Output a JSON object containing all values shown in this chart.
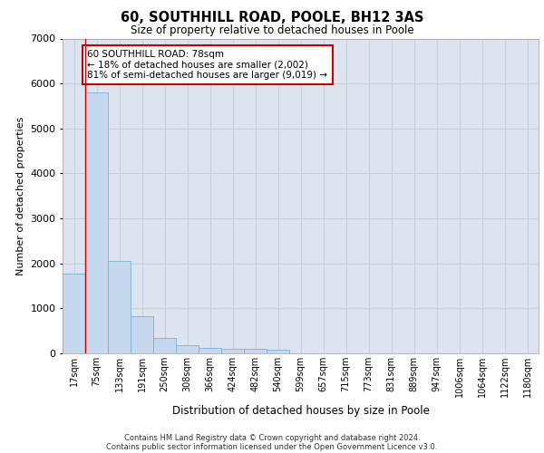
{
  "title1": "60, SOUTHHILL ROAD, POOLE, BH12 3AS",
  "title2": "Size of property relative to detached houses in Poole",
  "xlabel": "Distribution of detached houses by size in Poole",
  "ylabel": "Number of detached properties",
  "footnote1": "Contains HM Land Registry data © Crown copyright and database right 2024.",
  "footnote2": "Contains public sector information licensed under the Open Government Licence v3.0.",
  "bar_labels": [
    "17sqm",
    "75sqm",
    "133sqm",
    "191sqm",
    "250sqm",
    "308sqm",
    "366sqm",
    "424sqm",
    "482sqm",
    "540sqm",
    "599sqm",
    "657sqm",
    "715sqm",
    "773sqm",
    "831sqm",
    "889sqm",
    "947sqm",
    "1006sqm",
    "1064sqm",
    "1122sqm",
    "1180sqm"
  ],
  "bar_values": [
    1780,
    5800,
    2060,
    820,
    340,
    185,
    130,
    105,
    100,
    80,
    0,
    0,
    0,
    0,
    0,
    0,
    0,
    0,
    0,
    0,
    0
  ],
  "bar_color": "#c5d8ee",
  "bar_edgecolor": "#7aafd4",
  "property_line_label": "60 SOUTHHILL ROAD: 78sqm",
  "annotation_line1": "← 18% of detached houses are smaller (2,002)",
  "annotation_line2": "81% of semi-detached houses are larger (9,019) →",
  "annotation_box_color": "#ffffff",
  "annotation_box_edgecolor": "#cc0000",
  "ylim": [
    0,
    7000
  ],
  "yticks": [
    0,
    1000,
    2000,
    3000,
    4000,
    5000,
    6000,
    7000
  ],
  "grid_color": "#c8d0dc",
  "background_color": "#dce4f0",
  "fig_bg_color": "#ffffff",
  "title1_fontsize": 10.5,
  "title2_fontsize": 8.5,
  "ylabel_fontsize": 8,
  "xlabel_fontsize": 8.5,
  "tick_fontsize": 7,
  "footnote_fontsize": 6,
  "annot_fontsize": 7.5
}
